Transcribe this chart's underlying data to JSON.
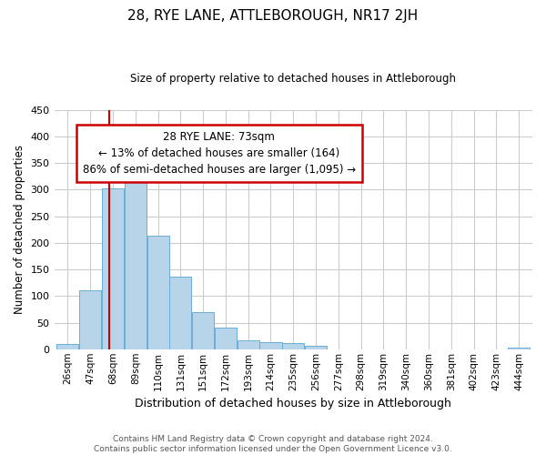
{
  "title": "28, RYE LANE, ATTLEBOROUGH, NR17 2JH",
  "subtitle": "Size of property relative to detached houses in Attleborough",
  "xlabel": "Distribution of detached houses by size in Attleborough",
  "ylabel": "Number of detached properties",
  "footer_line1": "Contains HM Land Registry data © Crown copyright and database right 2024.",
  "footer_line2": "Contains public sector information licensed under the Open Government Licence v3.0.",
  "categories": [
    "26sqm",
    "47sqm",
    "68sqm",
    "89sqm",
    "110sqm",
    "131sqm",
    "151sqm",
    "172sqm",
    "193sqm",
    "214sqm",
    "235sqm",
    "256sqm",
    "277sqm",
    "298sqm",
    "319sqm",
    "340sqm",
    "360sqm",
    "381sqm",
    "402sqm",
    "423sqm",
    "444sqm"
  ],
  "bar_values": [
    10,
    110,
    302,
    358,
    214,
    136,
    70,
    40,
    16,
    14,
    12,
    7,
    0,
    0,
    0,
    0,
    0,
    0,
    0,
    0,
    3
  ],
  "bar_color": "#b8d4e8",
  "bar_edge_color": "#6aaed6",
  "vline_color": "#cc0000",
  "annotation_title": "28 RYE LANE: 73sqm",
  "annotation_line2": "← 13% of detached houses are smaller (164)",
  "annotation_line3": "86% of semi-detached houses are larger (1,095) →",
  "ylim": [
    0,
    450
  ],
  "yticks": [
    0,
    50,
    100,
    150,
    200,
    250,
    300,
    350,
    400,
    450
  ],
  "background_color": "#ffffff",
  "grid_color": "#cccccc",
  "vline_index": 2.0
}
